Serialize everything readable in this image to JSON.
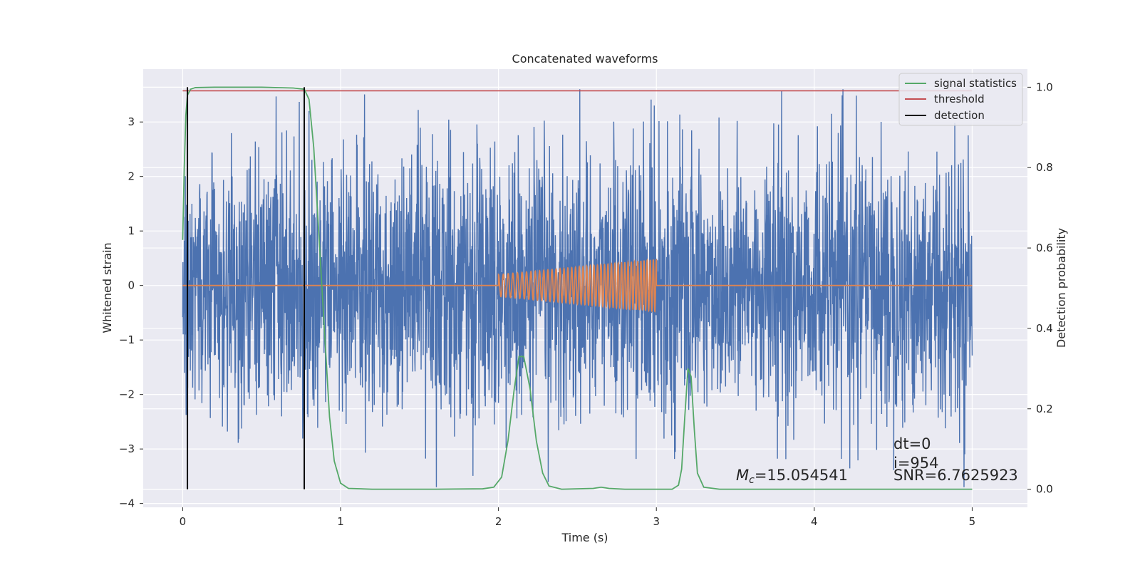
{
  "chart_data": {
    "type": "line",
    "title": "Concatenated waveforms",
    "xlabel": "Time (s)",
    "ylabel": "Whitened strain",
    "y2label": "Detection probability",
    "xlim": [
      -0.25,
      5.35
    ],
    "ylim": [
      -4.07,
      3.97
    ],
    "y2lim": [
      -0.045,
      1.045
    ],
    "x_ticks": [
      0,
      1,
      2,
      3,
      4,
      5
    ],
    "y_ticks": [
      -4,
      -3,
      -2,
      -1,
      0,
      1,
      2,
      3
    ],
    "y_tick_labels": [
      "−4",
      "−3",
      "−2",
      "−1",
      "0",
      "1",
      "2",
      "3"
    ],
    "y2_ticks": [
      0.0,
      0.2,
      0.4,
      0.6,
      0.8,
      1.0
    ],
    "y2_tick_labels": [
      "0.0",
      "0.2",
      "0.4",
      "0.6",
      "0.8",
      "1.0"
    ],
    "grid": true,
    "legend_position": "top-right",
    "legend": [
      {
        "label": "signal statistics",
        "color": "#55a868"
      },
      {
        "label": "threshold",
        "color": "#c44e52"
      },
      {
        "label": "detection",
        "color": "#000000"
      }
    ],
    "noise_series": {
      "name": "",
      "color": "#4c72b0",
      "x_range": [
        0,
        5
      ],
      "typical_amplitude": 1.2,
      "peak_range": [
        -3.7,
        3.6
      ]
    },
    "injected_signal": {
      "name": "",
      "color": "#dd8452",
      "start": 2.0,
      "end": 3.0,
      "amplitude_start": 0.2,
      "amplitude_end": 0.48,
      "baseline": 0
    },
    "signal_statistics": {
      "color": "#55a868",
      "axis": "right",
      "points": [
        [
          0.0,
          0.62
        ],
        [
          0.01,
          0.8
        ],
        [
          0.02,
          0.93
        ],
        [
          0.03,
          0.98
        ],
        [
          0.05,
          0.995
        ],
        [
          0.08,
          0.999
        ],
        [
          0.2,
          1.0
        ],
        [
          0.5,
          1.0
        ],
        [
          0.7,
          0.998
        ],
        [
          0.77,
          0.995
        ],
        [
          0.8,
          0.97
        ],
        [
          0.83,
          0.85
        ],
        [
          0.86,
          0.65
        ],
        [
          0.9,
          0.38
        ],
        [
          0.93,
          0.18
        ],
        [
          0.96,
          0.07
        ],
        [
          1.0,
          0.015
        ],
        [
          1.05,
          0.002
        ],
        [
          1.2,
          0.0
        ],
        [
          1.6,
          0.0
        ],
        [
          1.9,
          0.001
        ],
        [
          1.97,
          0.005
        ],
        [
          2.02,
          0.03
        ],
        [
          2.06,
          0.12
        ],
        [
          2.1,
          0.25
        ],
        [
          2.13,
          0.33
        ],
        [
          2.16,
          0.33
        ],
        [
          2.2,
          0.25
        ],
        [
          2.24,
          0.12
        ],
        [
          2.28,
          0.04
        ],
        [
          2.32,
          0.008
        ],
        [
          2.4,
          0.0
        ],
        [
          2.6,
          0.002
        ],
        [
          2.65,
          0.005
        ],
        [
          2.7,
          0.002
        ],
        [
          2.8,
          0.0
        ],
        [
          3.1,
          0.0
        ],
        [
          3.14,
          0.01
        ],
        [
          3.16,
          0.05
        ],
        [
          3.18,
          0.18
        ],
        [
          3.2,
          0.3
        ],
        [
          3.22,
          0.28
        ],
        [
          3.24,
          0.15
        ],
        [
          3.26,
          0.04
        ],
        [
          3.3,
          0.005
        ],
        [
          3.4,
          0.0
        ],
        [
          5.0,
          0.0
        ]
      ]
    },
    "threshold": {
      "value": 0.991,
      "x_range": [
        0,
        5
      ],
      "color": "#c44e52",
      "axis": "right"
    },
    "detections": {
      "x": [
        0.03,
        0.77
      ],
      "color": "#000000",
      "axis": "right",
      "y_range": [
        0.0,
        1.0
      ]
    },
    "annotations": {
      "mc_symbol": "M",
      "mc_subscript": "c",
      "mc_value": "=15.054541",
      "dt": "dt=0",
      "i": "i=954",
      "snr": "SNR=6.7625923"
    }
  }
}
